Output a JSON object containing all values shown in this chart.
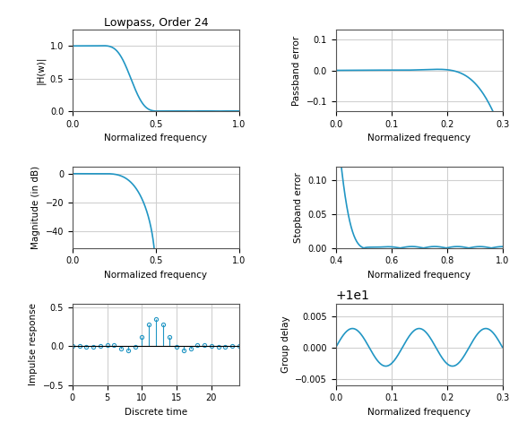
{
  "title": "Lowpass, Order 24",
  "line_color": "#2196c4",
  "fig_bg": "#ffffff",
  "ax_bg": "#ffffff",
  "grid_color": "#d0d0d0",
  "ylabels": [
    "|H(w)|",
    "Magnitude (in dB)",
    "Impulse response",
    "Passband error",
    "Stopband error",
    "Group delay"
  ],
  "xlabels": [
    "Normalized frequency",
    "Normalized frequency",
    "Discrete time",
    "Normalized frequency",
    "Normalized frequency",
    "Normalized frequency"
  ],
  "filter_order": 24,
  "cutoff": 0.35
}
